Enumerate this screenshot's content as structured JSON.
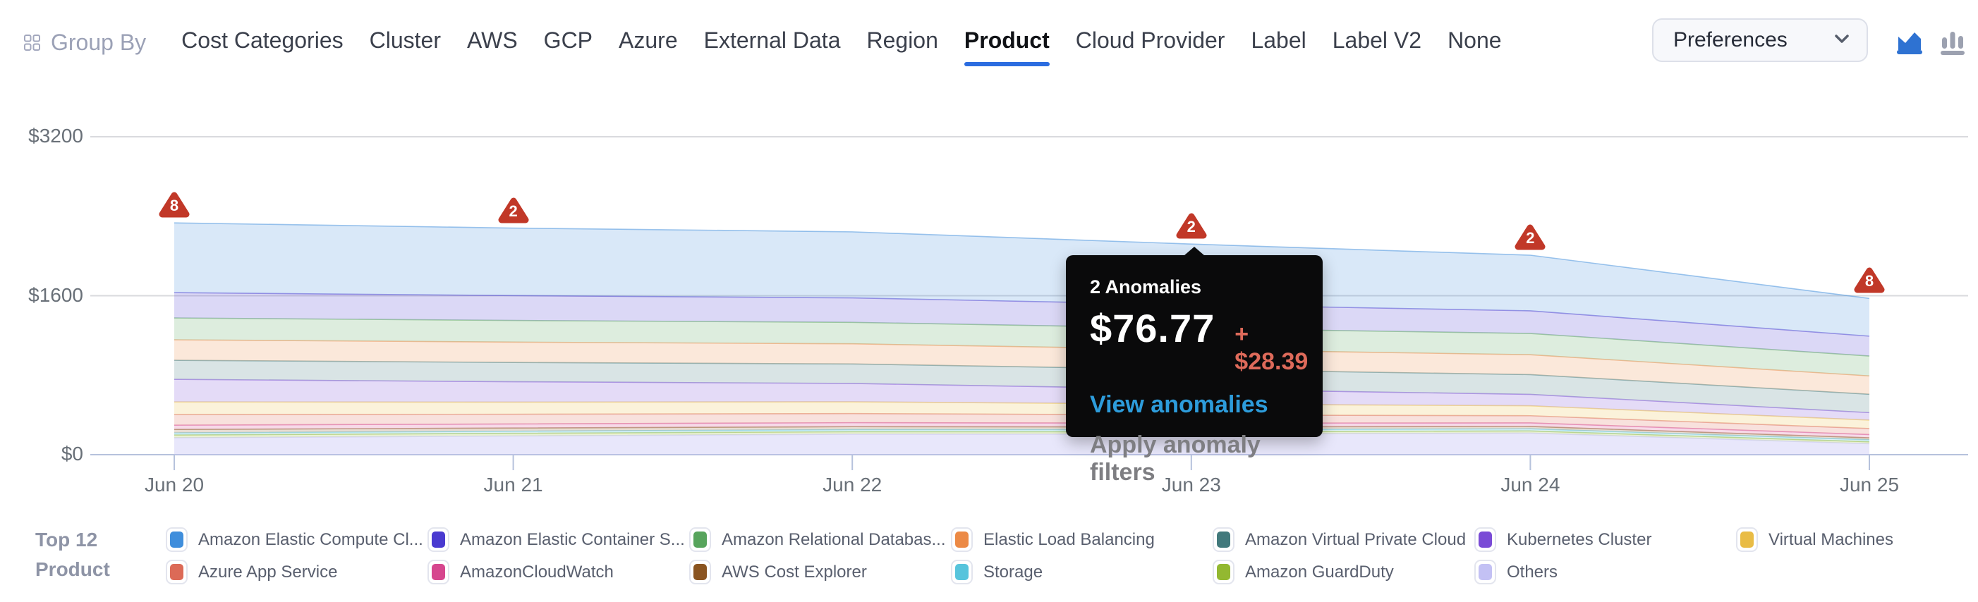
{
  "header": {
    "group_by_label": "Group By",
    "tabs": [
      "Cost Categories",
      "Cluster",
      "AWS",
      "GCP",
      "Azure",
      "External Data",
      "Region",
      "Product",
      "Cloud Provider",
      "Label",
      "Label V2",
      "None"
    ],
    "active_tab": "Product",
    "preferences_label": "Preferences",
    "accent_color": "#2B6CE0"
  },
  "chart": {
    "y_ticks": [
      {
        "label": "$0",
        "value": 0
      },
      {
        "label": "$1600",
        "value": 1600
      },
      {
        "label": "$3200",
        "value": 3200
      }
    ]
  },
  "chart_data": {
    "type": "area",
    "stacked": true,
    "title": "",
    "xlabel": "",
    "ylabel": "",
    "ylim": [
      0,
      3200
    ],
    "grid": "horizontal",
    "legend_position": "bottom",
    "categories": [
      "Jun 20",
      "Jun 21",
      "Jun 22",
      "Jun 23",
      "Jun 24",
      "Jun 25"
    ],
    "series": [
      {
        "name": "Amazon Elastic Compute Cl...",
        "color": "#3F8EDC",
        "values": [
          702,
          680,
          665,
          610,
          560,
          380
        ]
      },
      {
        "name": "Amazon Elastic Container S...",
        "color": "#4A3AD0",
        "values": [
          255,
          250,
          246,
          238,
          228,
          200
        ]
      },
      {
        "name": "Amazon Relational Databas...",
        "color": "#57A45C",
        "values": [
          220,
          218,
          216,
          214,
          214,
          200
        ]
      },
      {
        "name": "Elastic Load Balancing",
        "color": "#EC8A46",
        "values": [
          206,
          205,
          203,
          201,
          200,
          185
        ]
      },
      {
        "name": "Amazon Virtual Private Cloud",
        "color": "#41797C",
        "values": [
          192,
          194,
          196,
          198,
          199,
          185
        ]
      },
      {
        "name": "Kubernetes Cluster",
        "color": "#7A4BD6",
        "values": [
          227,
          205,
          185,
          150,
          115,
          75
        ]
      },
      {
        "name": "Virtual Machines",
        "color": "#E9BC45",
        "values": [
          128,
          122,
          118,
          110,
          100,
          85
        ]
      },
      {
        "name": "Azure App Service",
        "color": "#DC6A57",
        "values": [
          106,
          98,
          92,
          82,
          72,
          60
        ]
      },
      {
        "name": "AmazonCloudWatch",
        "color": "#D6468E",
        "values": [
          43,
          41,
          40,
          38,
          36,
          33
        ]
      },
      {
        "name": "AWS Cost Explorer",
        "color": "#8A5420",
        "values": [
          35,
          32,
          30,
          27,
          24,
          20
        ]
      },
      {
        "name": "Storage",
        "color": "#57C4DC",
        "values": [
          21,
          21,
          21,
          21,
          21,
          20
        ]
      },
      {
        "name": "Amazon GuardDuty",
        "color": "#93B831",
        "values": [
          28,
          27,
          25,
          24,
          22,
          20
        ]
      },
      {
        "name": "Others",
        "color": "#C3C1F4",
        "values": [
          170,
          188,
          206,
          207,
          217,
          110
        ],
        "fillOpacity": 0.38
      }
    ],
    "anomalies": [
      {
        "category": "Jun 20",
        "count": "8"
      },
      {
        "category": "Jun 21",
        "count": "2"
      },
      {
        "category": "Jun 23",
        "count": "2"
      },
      {
        "category": "Jun 24",
        "count": "2"
      },
      {
        "category": "Jun 25",
        "count": "8"
      }
    ],
    "anomaly_color": "#C13828"
  },
  "tooltip": {
    "title": "2 Anomalies",
    "amount": "$76.77",
    "delta": "+ $28.39",
    "link_label": "View anomalies",
    "secondary_label": "Apply anomaly filters"
  },
  "legend": {
    "title_line1": "Top 12",
    "title_line2": "Product",
    "items": [
      {
        "label": "Amazon Elastic Compute Cl...",
        "color": "#3F8EDC"
      },
      {
        "label": "Amazon Elastic Container S...",
        "color": "#4A3AD0"
      },
      {
        "label": "Amazon Relational Databas...",
        "color": "#57A45C"
      },
      {
        "label": "Elastic Load Balancing",
        "color": "#EC8A46"
      },
      {
        "label": "Amazon Virtual Private Cloud",
        "color": "#41797C"
      },
      {
        "label": "Kubernetes Cluster",
        "color": "#7A4BD6"
      },
      {
        "label": "Virtual Machines",
        "color": "#E9BC45"
      },
      {
        "label": "Azure App Service",
        "color": "#DC6A57"
      },
      {
        "label": "AmazonCloudWatch",
        "color": "#D6468E"
      },
      {
        "label": "AWS Cost Explorer",
        "color": "#8A5420"
      },
      {
        "label": "Storage",
        "color": "#57C4DC"
      },
      {
        "label": "Amazon GuardDuty",
        "color": "#93B831"
      },
      {
        "label": "Others",
        "color": "#C3C1F4"
      }
    ]
  }
}
